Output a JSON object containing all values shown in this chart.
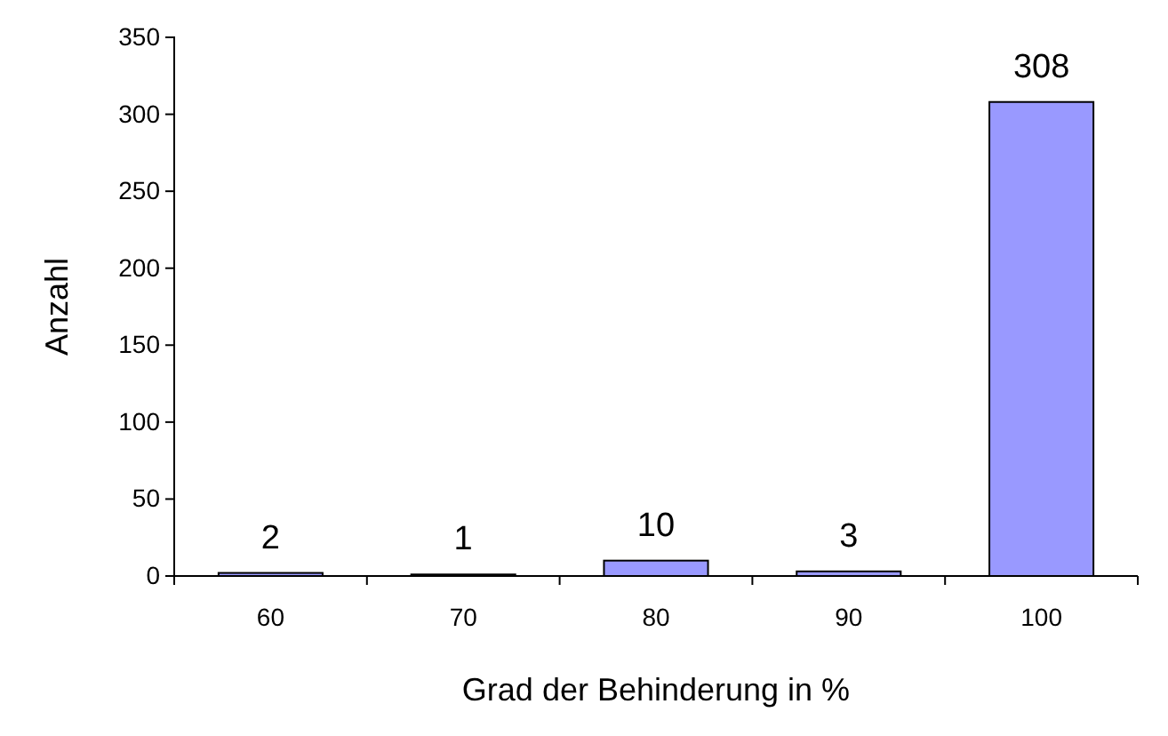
{
  "chart_data": {
    "type": "bar",
    "xlabel": "Grad der Behinderung in %",
    "ylabel": "Anzahl",
    "categories": [
      "60",
      "70",
      "80",
      "90",
      "100"
    ],
    "values": [
      2,
      1,
      10,
      3,
      308
    ],
    "color": "#9999ff",
    "ylim": [
      0,
      350
    ],
    "yticks": [
      0,
      50,
      100,
      150,
      200,
      250,
      300,
      350
    ],
    "data_labels": true,
    "grid": false
  }
}
